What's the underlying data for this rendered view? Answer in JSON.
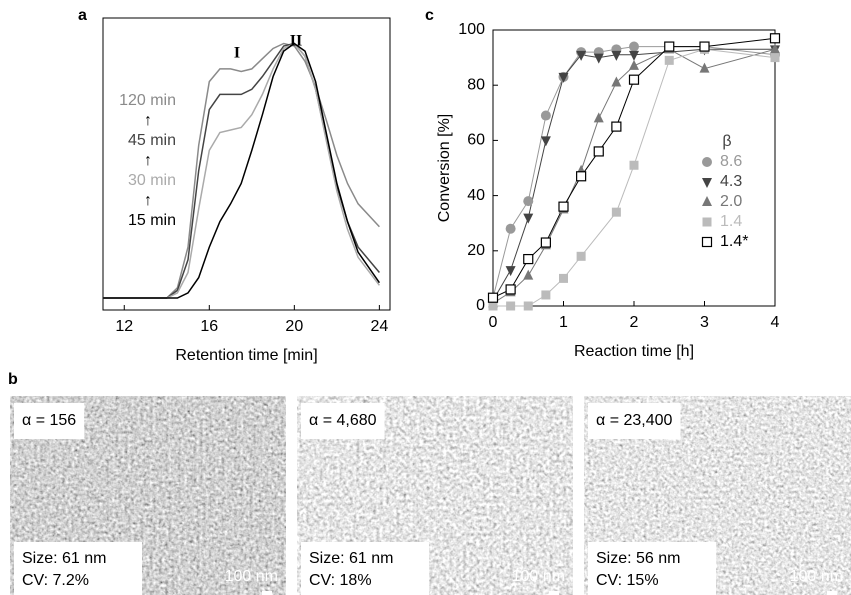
{
  "chart_data": [
    {
      "type": "line",
      "panel_label": "a",
      "xlabel": "Retention time [min]",
      "xlim": [
        11,
        24.5
      ],
      "xticks": [
        12,
        16,
        20,
        24
      ],
      "ylim": [
        0,
        1.1
      ],
      "annotations": [
        "I",
        "II"
      ],
      "legend_arrows": [
        "↑",
        "↑",
        "↑"
      ],
      "x": [
        11,
        13,
        14,
        14.5,
        15,
        15.5,
        16,
        16.5,
        17,
        17.5,
        18,
        18.5,
        19,
        19.5,
        20,
        20.5,
        21,
        21.5,
        22,
        22.5,
        23,
        24
      ],
      "series": [
        {
          "name": "120 min",
          "color": "#8a8a8a",
          "values": [
            0,
            0,
            0,
            0.04,
            0.2,
            0.6,
            0.85,
            0.9,
            0.9,
            0.89,
            0.9,
            0.94,
            0.98,
            1.0,
            0.99,
            0.93,
            0.83,
            0.7,
            0.56,
            0.45,
            0.37,
            0.28
          ]
        },
        {
          "name": "45 min",
          "color": "#444444",
          "values": [
            0,
            0,
            0,
            0.03,
            0.15,
            0.5,
            0.74,
            0.8,
            0.8,
            0.8,
            0.82,
            0.87,
            0.93,
            0.99,
            1.0,
            0.95,
            0.82,
            0.63,
            0.44,
            0.3,
            0.2,
            0.1
          ]
        },
        {
          "name": "30 min",
          "color": "#aaaaaa",
          "values": [
            0,
            0,
            0,
            0.02,
            0.1,
            0.35,
            0.58,
            0.65,
            0.66,
            0.67,
            0.72,
            0.8,
            0.9,
            0.98,
            1.0,
            0.95,
            0.82,
            0.62,
            0.42,
            0.27,
            0.16,
            0.05
          ]
        },
        {
          "name": "15 min",
          "color": "#000000",
          "values": [
            0,
            0,
            0,
            0,
            0.02,
            0.08,
            0.2,
            0.3,
            0.37,
            0.45,
            0.58,
            0.72,
            0.87,
            0.97,
            1.0,
            0.97,
            0.85,
            0.65,
            0.45,
            0.3,
            0.18,
            0.06
          ]
        }
      ]
    },
    {
      "type": "scatter-line",
      "panel_label": "c",
      "xlabel": "Reaction time [h]",
      "ylabel": "Conversion [%]",
      "xlim": [
        0,
        4
      ],
      "xticks": [
        0,
        1,
        2,
        3,
        4
      ],
      "ylim": [
        0,
        100
      ],
      "yticks": [
        0,
        20,
        40,
        60,
        80,
        100
      ],
      "legend_title": "β",
      "series": [
        {
          "name": "8.6",
          "color": "#999999",
          "marker": "circle",
          "x": [
            0,
            0.25,
            0.5,
            0.75,
            1,
            1.25,
            1.5,
            1.75,
            2,
            3,
            4
          ],
          "values": [
            3,
            28,
            38,
            69,
            83,
            92,
            92,
            93,
            94,
            94,
            91
          ]
        },
        {
          "name": "4.3",
          "color": "#444444",
          "marker": "triangle-down",
          "x": [
            0,
            0.25,
            0.5,
            0.75,
            1,
            1.25,
            1.5,
            1.75,
            2,
            3,
            4
          ],
          "values": [
            2,
            13,
            32,
            60,
            83,
            91,
            90,
            91,
            91,
            93,
            93
          ]
        },
        {
          "name": "2.0",
          "color": "#777777",
          "marker": "triangle-up",
          "x": [
            0,
            0.25,
            0.5,
            0.75,
            1,
            1.25,
            1.5,
            1.75,
            2,
            2.5,
            3,
            4
          ],
          "values": [
            1,
            5,
            11,
            22,
            35,
            49,
            68,
            81,
            87,
            93,
            86,
            93
          ]
        },
        {
          "name": "1.4",
          "color": "#bbbbbb",
          "marker": "square",
          "x": [
            0,
            0.25,
            0.5,
            0.75,
            1,
            1.25,
            1.75,
            2,
            2.5,
            3,
            4
          ],
          "values": [
            0,
            0,
            0,
            4,
            10,
            18,
            34,
            51,
            89,
            93,
            90
          ]
        },
        {
          "name": "1.4*",
          "color": "#000000",
          "marker": "open-square",
          "x": [
            0,
            0.25,
            0.5,
            0.75,
            1,
            1.25,
            1.5,
            1.75,
            2,
            2.5,
            3,
            4
          ],
          "values": [
            3,
            6,
            17,
            23,
            36,
            47,
            56,
            65,
            82,
            94,
            94,
            97
          ]
        }
      ]
    }
  ],
  "panel_b": {
    "label": "b",
    "images": [
      {
        "alpha": "α = 156",
        "size": "Size: 61 nm",
        "cv": "CV: 7.2%",
        "scale": "100 nm"
      },
      {
        "alpha": "α = 4,680",
        "size": "Size: 61 nm",
        "cv": "CV: 18%",
        "scale": "100 nm"
      },
      {
        "alpha": "α = 23,400",
        "size": "Size: 56 nm",
        "cv": "CV: 15%",
        "scale": "100 nm"
      }
    ]
  }
}
